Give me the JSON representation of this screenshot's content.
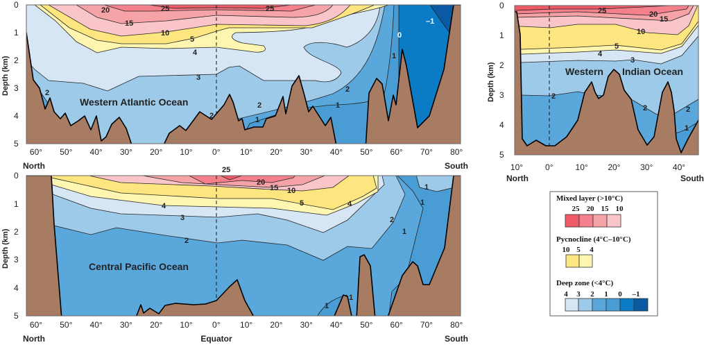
{
  "colors": {
    "mixed_25": "#ee5a66",
    "mixed_20": "#f3808a",
    "mixed_15": "#f6a3a8",
    "mixed_10": "#f9c5c8",
    "pyc_10": "#fde57f",
    "pyc_5": "#fef6b0",
    "deep_4": "#d6e6f5",
    "deep_3": "#9ecaea",
    "deep_2": "#5aa7dc",
    "deep_1": "#4a9cd4",
    "deep_0": "#0a7bc4",
    "deep_m1": "#0a5aa3",
    "seafloor": "#a87c63"
  },
  "axis": {
    "depth_label": "Depth (km)",
    "depth_ticks": [
      "0",
      "1",
      "2",
      "3",
      "4",
      "5"
    ],
    "lat_ticks": [
      "60°",
      "50°",
      "40°",
      "30°",
      "20°",
      "10°",
      "0°",
      "10°",
      "20°",
      "30°",
      "40°",
      "50°",
      "60°",
      "70°",
      "80°"
    ],
    "indian_lat_ticks": [
      "10°",
      "0°",
      "10°",
      "20°",
      "30°",
      "40°"
    ],
    "north": "North",
    "south": "South",
    "equator": "Equator"
  },
  "atlantic": {
    "title": "Western Atlantic Ocean",
    "contour_labels": [
      "20",
      "25",
      "25",
      "15",
      "10",
      "5",
      "4",
      "3",
      "2",
      "2",
      "2",
      "2",
      "1",
      "1",
      "1",
      "0",
      "–1"
    ]
  },
  "pacific": {
    "title": "Central Pacific Ocean",
    "contour_labels": [
      "25",
      "20",
      "15",
      "10",
      "5",
      "4",
      "4",
      "3",
      "2",
      "2",
      "1",
      "1",
      "1",
      "1",
      "1"
    ]
  },
  "indian": {
    "title_left": "Western",
    "title_right": "Indian Ocean",
    "contour_labels": [
      "25",
      "20",
      "15",
      "10",
      "5",
      "4",
      "3",
      "2",
      "2",
      "2",
      "1"
    ]
  },
  "legend": {
    "mixed_title": "Mixed layer (>10°C)",
    "mixed_values": [
      "25",
      "20",
      "15",
      "10"
    ],
    "pyc_title": "Pycnocline (4°C–10°C)",
    "pyc_values": [
      "10",
      "5",
      "4"
    ],
    "deep_title": "Deep zone (<4°C)",
    "deep_values": [
      "4",
      "3",
      "2",
      "1",
      "0",
      "–1"
    ]
  }
}
